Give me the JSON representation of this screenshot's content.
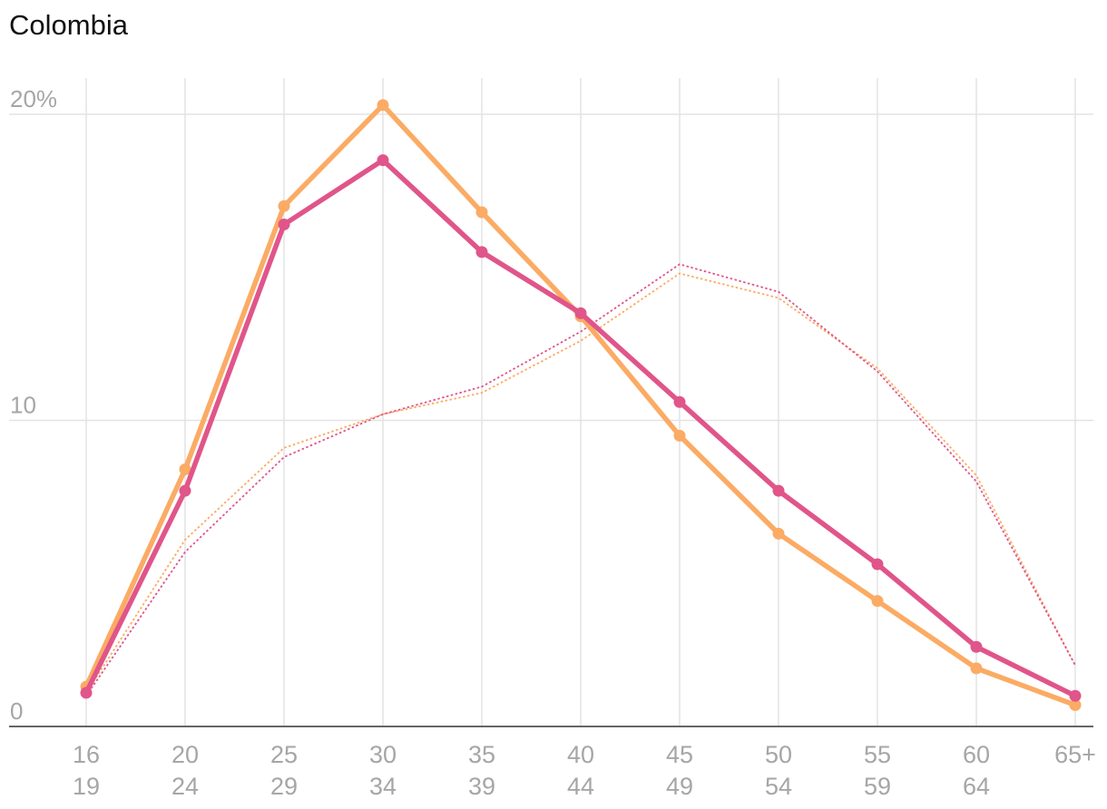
{
  "chart_data": {
    "type": "line",
    "title": "Colombia",
    "categories": [
      "16-19",
      "20-24",
      "25-29",
      "30-34",
      "35-39",
      "40-44",
      "45-49",
      "50-54",
      "55-59",
      "60-64",
      "65+"
    ],
    "x_tick_labels": [
      {
        "top": "16",
        "bottom": "19"
      },
      {
        "top": "20",
        "bottom": "24"
      },
      {
        "top": "25",
        "bottom": "29"
      },
      {
        "top": "30",
        "bottom": "34"
      },
      {
        "top": "35",
        "bottom": "39"
      },
      {
        "top": "40",
        "bottom": "44"
      },
      {
        "top": "45",
        "bottom": "49"
      },
      {
        "top": "50",
        "bottom": "54"
      },
      {
        "top": "55",
        "bottom": "59"
      },
      {
        "top": "60",
        "bottom": "64"
      },
      {
        "top": "65+",
        "bottom": ""
      }
    ],
    "y_ticks": [
      {
        "value": 20,
        "label": "20%"
      },
      {
        "value": 10,
        "label": "10"
      },
      {
        "value": 0,
        "label": "0"
      }
    ],
    "ylim": [
      0,
      20
    ],
    "grid": true,
    "xlabel": "",
    "ylabel": "",
    "series": [
      {
        "color": "#fbab64",
        "style": "solid",
        "markers": true,
        "values": [
          1.3,
          8.4,
          17.0,
          20.3,
          16.8,
          13.4,
          9.5,
          6.3,
          4.1,
          1.9,
          0.7
        ]
      },
      {
        "color": "#e0558a",
        "style": "solid",
        "markers": true,
        "values": [
          1.1,
          7.7,
          16.4,
          18.5,
          15.5,
          13.5,
          10.6,
          7.7,
          5.3,
          2.6,
          1.0
        ]
      },
      {
        "color": "#fbab64",
        "style": "dotted",
        "markers": false,
        "values": [
          1.1,
          6.1,
          9.1,
          10.2,
          10.9,
          12.6,
          14.8,
          14.0,
          11.7,
          8.2,
          2.0
        ]
      },
      {
        "color": "#e0558a",
        "style": "dotted",
        "markers": false,
        "values": [
          1.0,
          5.7,
          8.8,
          10.2,
          11.1,
          12.9,
          15.1,
          14.2,
          11.6,
          8.0,
          2.0
        ]
      }
    ]
  }
}
